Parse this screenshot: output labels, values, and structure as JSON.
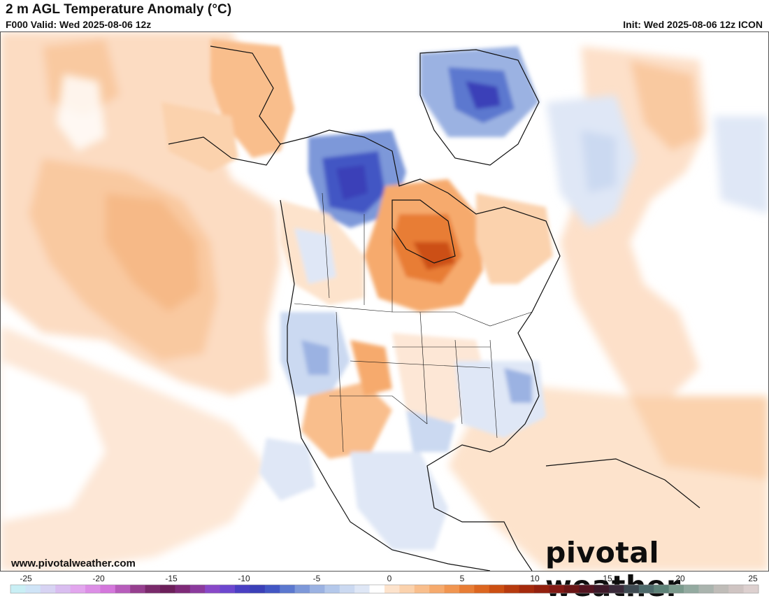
{
  "header": {
    "title": "2 m AGL Temperature Anomaly (°C)",
    "valid": "F000 Valid: Wed 2025-08-06 12z",
    "init": "Init: Wed 2025-08-06 12z ICON"
  },
  "footer": {
    "website": "www.pivotalweather.com",
    "logo_text": "pivotal weather"
  },
  "colorbar": {
    "ticks": [
      "-25",
      "-20",
      "-15",
      "-10",
      "-5",
      "0",
      "5",
      "10",
      "15",
      "20",
      "25"
    ],
    "colors": [
      "#c9eff5",
      "#cfe4f7",
      "#d7d3f3",
      "#d9bdf0",
      "#e2a6ee",
      "#dc8ee6",
      "#d477dc",
      "#b75cbb",
      "#963f8f",
      "#7a2a6b",
      "#6c1f5a",
      "#7e2a78",
      "#8b3a9d",
      "#8848c8",
      "#6c47cf",
      "#4a3fc3",
      "#3a3fb8",
      "#4256c4",
      "#5b78cf",
      "#7d98d9",
      "#9bb2e2",
      "#b4c8eb",
      "#cbd9f1",
      "#dfe7f6",
      "#ffffff",
      "#fde3cc",
      "#fbd2ad",
      "#f9be8c",
      "#f6aa6d",
      "#f19550",
      "#e87d35",
      "#dc6620",
      "#cc4f12",
      "#b73a0e",
      "#a52a0c",
      "#93200e",
      "#831a15",
      "#6a1616",
      "#541521",
      "#3e1a2a",
      "#3a2a3a",
      "#3e4a52",
      "#4d6a6b",
      "#5d8278",
      "#7a9a8c",
      "#93aaa0",
      "#aab4ae",
      "#bfbcb8",
      "#cfc4c2",
      "#ddd0cf"
    ]
  }
}
